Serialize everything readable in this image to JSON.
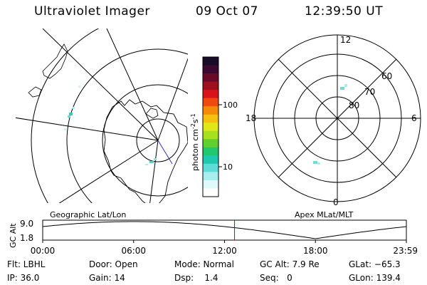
{
  "header": {
    "instrument": "Ultraviolet Imager",
    "date": "09 Oct 07",
    "time": "12:39:50 UT"
  },
  "left_panel": {
    "label": "Geographic Lat/Lon"
  },
  "right_panel": {
    "label": "Apex MLat/MLT",
    "hour_labels": {
      "top": "12",
      "left": "18",
      "right": "6",
      "bottom": "0"
    },
    "lat_labels": {
      "l60": "60",
      "l70": "70",
      "l80": "80"
    }
  },
  "colorbar": {
    "unit_label": "photon cm^-2 s^-1",
    "unit_main": "photon cm",
    "exp1": "-2",
    "mid": "s",
    "exp2": "-1",
    "tick_100": "100",
    "tick_10": "10",
    "colors": [
      "#1a0a2a",
      "#3a0830",
      "#6a0a28",
      "#a0101c",
      "#d8141a",
      "#ee4a10",
      "#f38a08",
      "#f6c010",
      "#e0e818",
      "#a8e020",
      "#60d030",
      "#20c870",
      "#20c8b0",
      "#60dcd8",
      "#a8eeee",
      "#dffafa",
      "#ffffff"
    ]
  },
  "altitude_plot": {
    "ylabel": "GC Alt",
    "ytick_top": "9.0",
    "ytick_bottom": "1.8",
    "xticks": [
      "00:00",
      "06:00",
      "12:00",
      "18:00",
      "23:59"
    ],
    "marker_time_hours": 12.66,
    "marker_color": "#cc0000"
  },
  "footer": {
    "flt": "Flt: LBHL",
    "ip": "IP: 36.0",
    "door": "Door: Open",
    "gain": "Gain: 14",
    "mode": "Mode: Normal",
    "dsp": "Dsp:    1.4",
    "gcalt": "GC Alt: 7.9 Re",
    "seq": "Seq:   0",
    "glat": "GLat: −65.3",
    "glon": "GLon: 139.4"
  }
}
